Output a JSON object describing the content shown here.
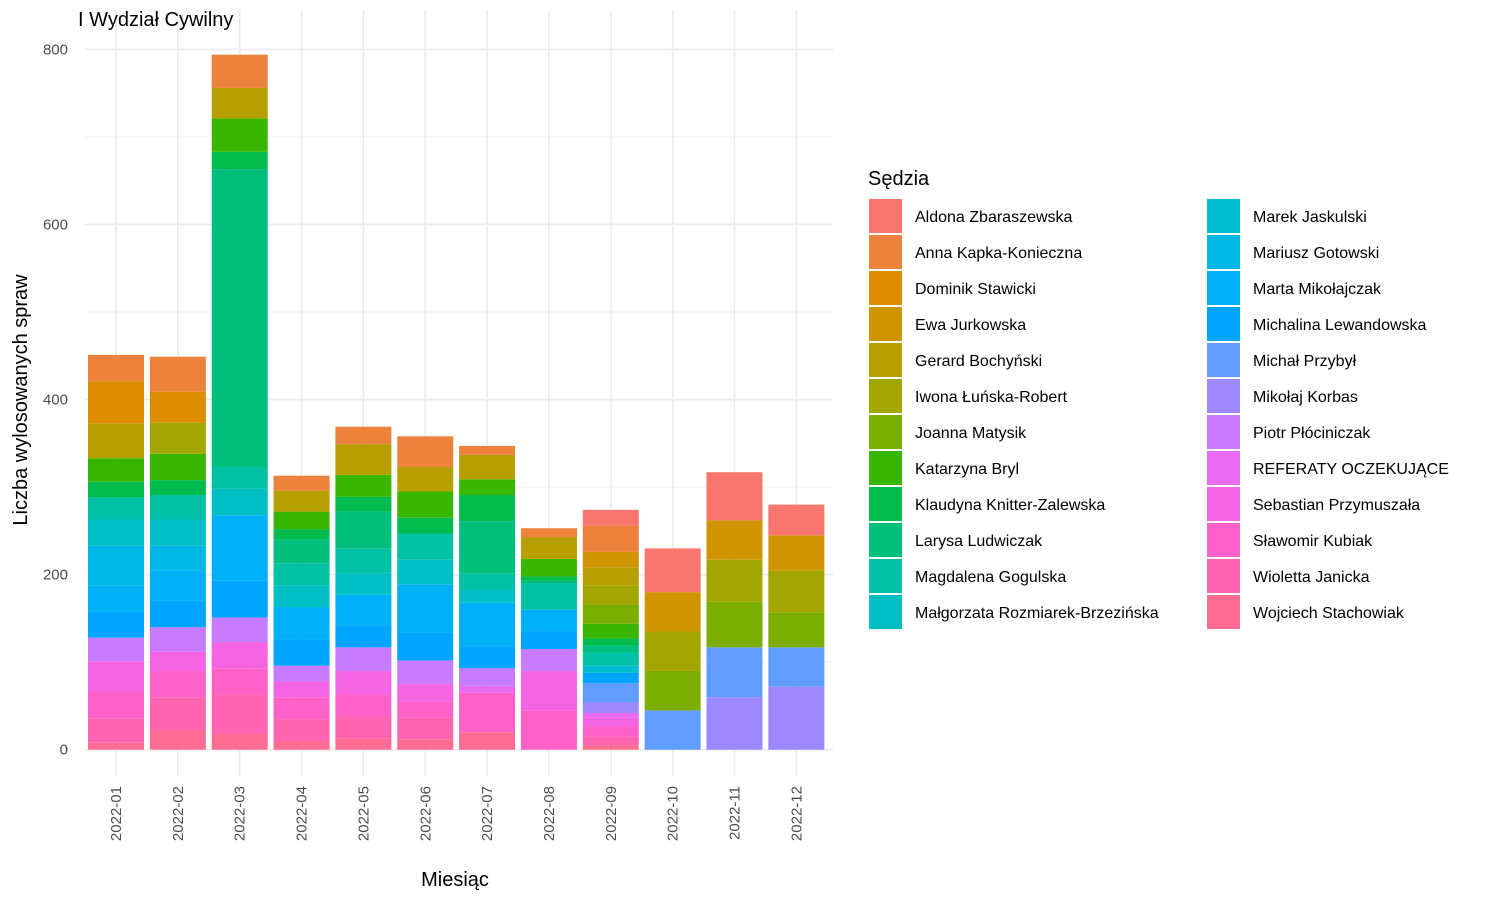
{
  "chart_data": {
    "type": "bar",
    "stacked": true,
    "title": "I Wydział Cywilny",
    "xlabel": "Miesiąc",
    "ylabel": "Liczba wylosowanych spraw",
    "ylim": [
      -30,
      845
    ],
    "yticks": [
      0,
      200,
      400,
      600,
      800
    ],
    "grid": true,
    "legend_position": "right",
    "legend_title": "Sędzia",
    "categories": [
      "2022-01",
      "2022-02",
      "2022-03",
      "2022-04",
      "2022-05",
      "2022-06",
      "2022-07",
      "2022-08",
      "2022-09",
      "2022-10",
      "2022-11",
      "2022-12"
    ],
    "series": [
      {
        "name": "Aldona Zbaraszewska",
        "color": "#F8766D",
        "values": [
          0,
          0,
          0,
          0,
          0,
          0,
          0,
          0,
          18,
          50,
          55,
          35
        ]
      },
      {
        "name": "Anna Kapka-Konieczna",
        "color": "#EC823C",
        "values": [
          30,
          40,
          38,
          17,
          20,
          35,
          10,
          10,
          30,
          0,
          0,
          0
        ]
      },
      {
        "name": "Dominik Stawicki",
        "color": "#DE8C00",
        "values": [
          48,
          35,
          0,
          0,
          0,
          0,
          0,
          0,
          0,
          0,
          0,
          0
        ]
      },
      {
        "name": "Ewa Jurkowska",
        "color": "#CF9400",
        "values": [
          0,
          0,
          0,
          0,
          0,
          0,
          0,
          0,
          18,
          45,
          45,
          40
        ]
      },
      {
        "name": "Gerard Bochyński",
        "color": "#B79F00",
        "values": [
          40,
          0,
          35,
          24,
          35,
          28,
          28,
          25,
          20,
          0,
          0,
          0
        ]
      },
      {
        "name": "Iwona Łuńska-Robert",
        "color": "#A3A500",
        "values": [
          0,
          36,
          0,
          0,
          0,
          0,
          0,
          0,
          22,
          45,
          48,
          48
        ]
      },
      {
        "name": "Joanna Matysik",
        "color": "#7CAE00",
        "values": [
          0,
          0,
          0,
          0,
          0,
          0,
          0,
          0,
          22,
          45,
          52,
          40
        ]
      },
      {
        "name": "Katarzyna Bryl",
        "color": "#39B600",
        "values": [
          27,
          30,
          38,
          20,
          25,
          30,
          18,
          20,
          17,
          0,
          0,
          0
        ]
      },
      {
        "name": "Klaudyna Knitter-Zalewska",
        "color": "#00BB4E",
        "values": [
          18,
          17,
          20,
          12,
          17,
          18,
          30,
          5,
          8,
          0,
          0,
          0
        ]
      },
      {
        "name": "Larysa Ludwiczak",
        "color": "#00BF7D",
        "values": [
          0,
          0,
          340,
          27,
          42,
          0,
          60,
          3,
          8,
          0,
          0,
          0
        ]
      },
      {
        "name": "Magdalena Gogulska",
        "color": "#00C1A3",
        "values": [
          25,
          28,
          25,
          25,
          28,
          30,
          18,
          30,
          15,
          0,
          0,
          0
        ]
      },
      {
        "name": "Małgorzata Rozmiarek-Brzezińska",
        "color": "#00BFC4",
        "values": [
          30,
          30,
          30,
          25,
          25,
          28,
          15,
          0,
          0,
          0,
          0,
          0
        ]
      },
      {
        "name": "Marek Jaskulski",
        "color": "#00BDD0",
        "values": [
          0,
          0,
          0,
          0,
          0,
          0,
          0,
          0,
          8,
          0,
          0,
          0
        ]
      },
      {
        "name": "Mariusz Gotowski",
        "color": "#00B8E5",
        "values": [
          45,
          28,
          0,
          0,
          0,
          0,
          0,
          0,
          0,
          0,
          0,
          0
        ]
      },
      {
        "name": "Marta Mikołajczak",
        "color": "#00B0F6",
        "values": [
          30,
          35,
          75,
          37,
          35,
          55,
          50,
          25,
          0,
          0,
          0,
          0
        ]
      },
      {
        "name": "Michalina Lewandowska",
        "color": "#00A5FF",
        "values": [
          30,
          30,
          42,
          30,
          25,
          32,
          25,
          20,
          12,
          0,
          0,
          0
        ]
      },
      {
        "name": "Michał Przybył",
        "color": "#619CFF",
        "values": [
          0,
          0,
          0,
          0,
          0,
          0,
          0,
          0,
          22,
          45,
          57,
          45
        ]
      },
      {
        "name": "Mikołaj Korbas",
        "color": "#9E88FF",
        "values": [
          0,
          0,
          0,
          0,
          0,
          0,
          0,
          0,
          12,
          0,
          60,
          72
        ]
      },
      {
        "name": "Piotr Płóciniczak",
        "color": "#C77CFF",
        "values": [
          27,
          28,
          28,
          18,
          27,
          27,
          20,
          25,
          0,
          0,
          0,
          0
        ]
      },
      {
        "name": "REFERATY OCZEKUJĄCE",
        "color": "#E76BF3",
        "values": [
          0,
          0,
          0,
          0,
          0,
          0,
          8,
          0,
          5,
          0,
          0,
          0
        ]
      },
      {
        "name": "Sebastian Przymuszała",
        "color": "#F564E3",
        "values": [
          35,
          22,
          30,
          18,
          27,
          20,
          0,
          45,
          10,
          0,
          0,
          0
        ]
      },
      {
        "name": "Sławomir Kubiak",
        "color": "#FF61C9",
        "values": [
          30,
          30,
          30,
          25,
          25,
          18,
          45,
          45,
          12,
          0,
          0,
          0
        ]
      },
      {
        "name": "Wioletta Janicka",
        "color": "#FF64B0",
        "values": [
          28,
          38,
          45,
          25,
          25,
          25,
          0,
          0,
          10,
          0,
          0,
          0
        ]
      },
      {
        "name": "Wojciech Stachowiak",
        "color": "#FF6C91",
        "values": [
          8,
          22,
          18,
          10,
          13,
          12,
          20,
          0,
          5,
          0,
          0,
          0
        ]
      }
    ]
  }
}
